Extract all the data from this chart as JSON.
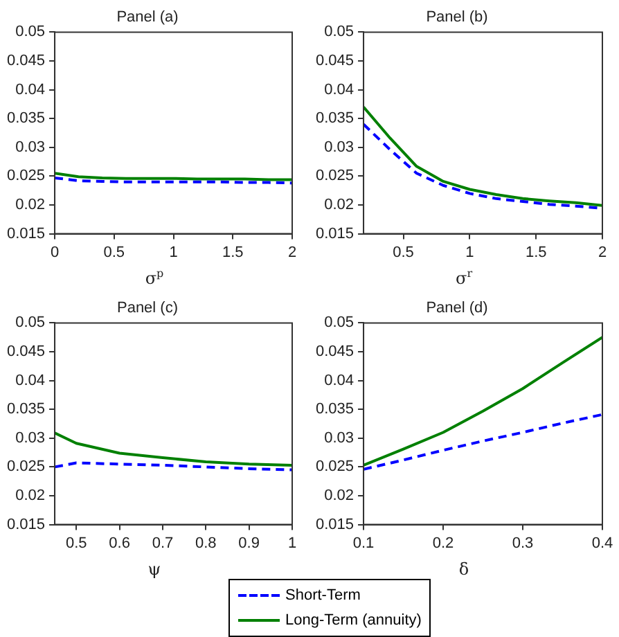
{
  "chart_data": [
    {
      "type": "line",
      "title": "Panel (a)",
      "xlabel": "σ$^{p}$",
      "x": [
        0,
        0.2,
        0.4,
        0.6,
        0.8,
        1,
        1.2,
        1.4,
        1.6,
        1.8,
        2
      ],
      "xlim": [
        0,
        2
      ],
      "xticks": [
        0,
        0.5,
        1,
        1.5,
        2
      ],
      "ylim": [
        0.015,
        0.05
      ],
      "yticks": [
        0.015,
        0.02,
        0.025,
        0.03,
        0.035,
        0.04,
        0.045,
        0.05
      ],
      "grid": false,
      "legend": "bottom",
      "marker": "none",
      "series": [
        {
          "name": "Short-Term",
          "color": "#0000ff",
          "line_style": "dashed",
          "values": [
            0.0247,
            0.0242,
            0.0241,
            0.024,
            0.024,
            0.024,
            0.024,
            0.024,
            0.0239,
            0.0239,
            0.0238
          ]
        },
        {
          "name": "Long-Term (annuity)",
          "color": "#008000",
          "line_style": "solid",
          "values": [
            0.0255,
            0.0249,
            0.0247,
            0.0246,
            0.0246,
            0.0246,
            0.0245,
            0.0245,
            0.0245,
            0.0244,
            0.0244
          ]
        }
      ]
    },
    {
      "type": "line",
      "title": "Panel (b)",
      "xlabel": "σ$^{r}$",
      "x": [
        0.2,
        0.4,
        0.6,
        0.8,
        1,
        1.2,
        1.4,
        1.6,
        1.8,
        2
      ],
      "xlim": [
        0.2,
        2
      ],
      "xticks": [
        0.5,
        1,
        1.5,
        2
      ],
      "ylim": [
        0.015,
        0.05
      ],
      "yticks": [
        0.015,
        0.02,
        0.025,
        0.03,
        0.035,
        0.04,
        0.045,
        0.05
      ],
      "grid": false,
      "legend": "bottom",
      "marker": "none",
      "series": [
        {
          "name": "Short-Term",
          "color": "#0000ff",
          "line_style": "dashed",
          "values": [
            0.034,
            0.0296,
            0.0255,
            0.0234,
            0.022,
            0.0211,
            0.0206,
            0.0201,
            0.0198,
            0.0194
          ]
        },
        {
          "name": "Long-Term (annuity)",
          "color": "#008000",
          "line_style": "solid",
          "values": [
            0.037,
            0.0316,
            0.0267,
            0.0241,
            0.0227,
            0.0218,
            0.0211,
            0.0207,
            0.0204,
            0.0199
          ]
        }
      ]
    },
    {
      "type": "line",
      "title": "Panel (c)",
      "xlabel": "ψ",
      "x": [
        0.45,
        0.5,
        0.6,
        0.7,
        0.8,
        0.9,
        1
      ],
      "xlim": [
        0.45,
        1
      ],
      "xticks": [
        0.5,
        0.6,
        0.7,
        0.8,
        0.9,
        1
      ],
      "ylim": [
        0.015,
        0.05
      ],
      "yticks": [
        0.015,
        0.02,
        0.025,
        0.03,
        0.035,
        0.04,
        0.045,
        0.05
      ],
      "grid": false,
      "legend": "bottom",
      "marker": "none",
      "series": [
        {
          "name": "Short-Term",
          "color": "#0000ff",
          "line_style": "dashed",
          "values": [
            0.025,
            0.0257,
            0.0255,
            0.0253,
            0.025,
            0.0247,
            0.0245
          ]
        },
        {
          "name": "Long-Term (annuity)",
          "color": "#008000",
          "line_style": "solid",
          "values": [
            0.0309,
            0.0291,
            0.0274,
            0.0266,
            0.0259,
            0.0255,
            0.0253
          ]
        }
      ]
    },
    {
      "type": "line",
      "title": "Panel (d)",
      "xlabel": "δ",
      "x": [
        0.1,
        0.15,
        0.2,
        0.25,
        0.3,
        0.35,
        0.4
      ],
      "xlim": [
        0.1,
        0.4
      ],
      "xticks": [
        0.1,
        0.2,
        0.3,
        0.4
      ],
      "ylim": [
        0.015,
        0.05
      ],
      "yticks": [
        0.015,
        0.02,
        0.025,
        0.03,
        0.035,
        0.04,
        0.045,
        0.05
      ],
      "grid": false,
      "legend": "bottom",
      "marker": "none",
      "series": [
        {
          "name": "Short-Term",
          "color": "#0000ff",
          "line_style": "dashed",
          "values": [
            0.0246,
            0.0262,
            0.0279,
            0.0295,
            0.031,
            0.0326,
            0.0341
          ]
        },
        {
          "name": "Long-Term (annuity)",
          "color": "#008000",
          "line_style": "solid",
          "values": [
            0.0253,
            0.0281,
            0.031,
            0.0347,
            0.0386,
            0.0431,
            0.0475
          ]
        }
      ]
    }
  ]
}
